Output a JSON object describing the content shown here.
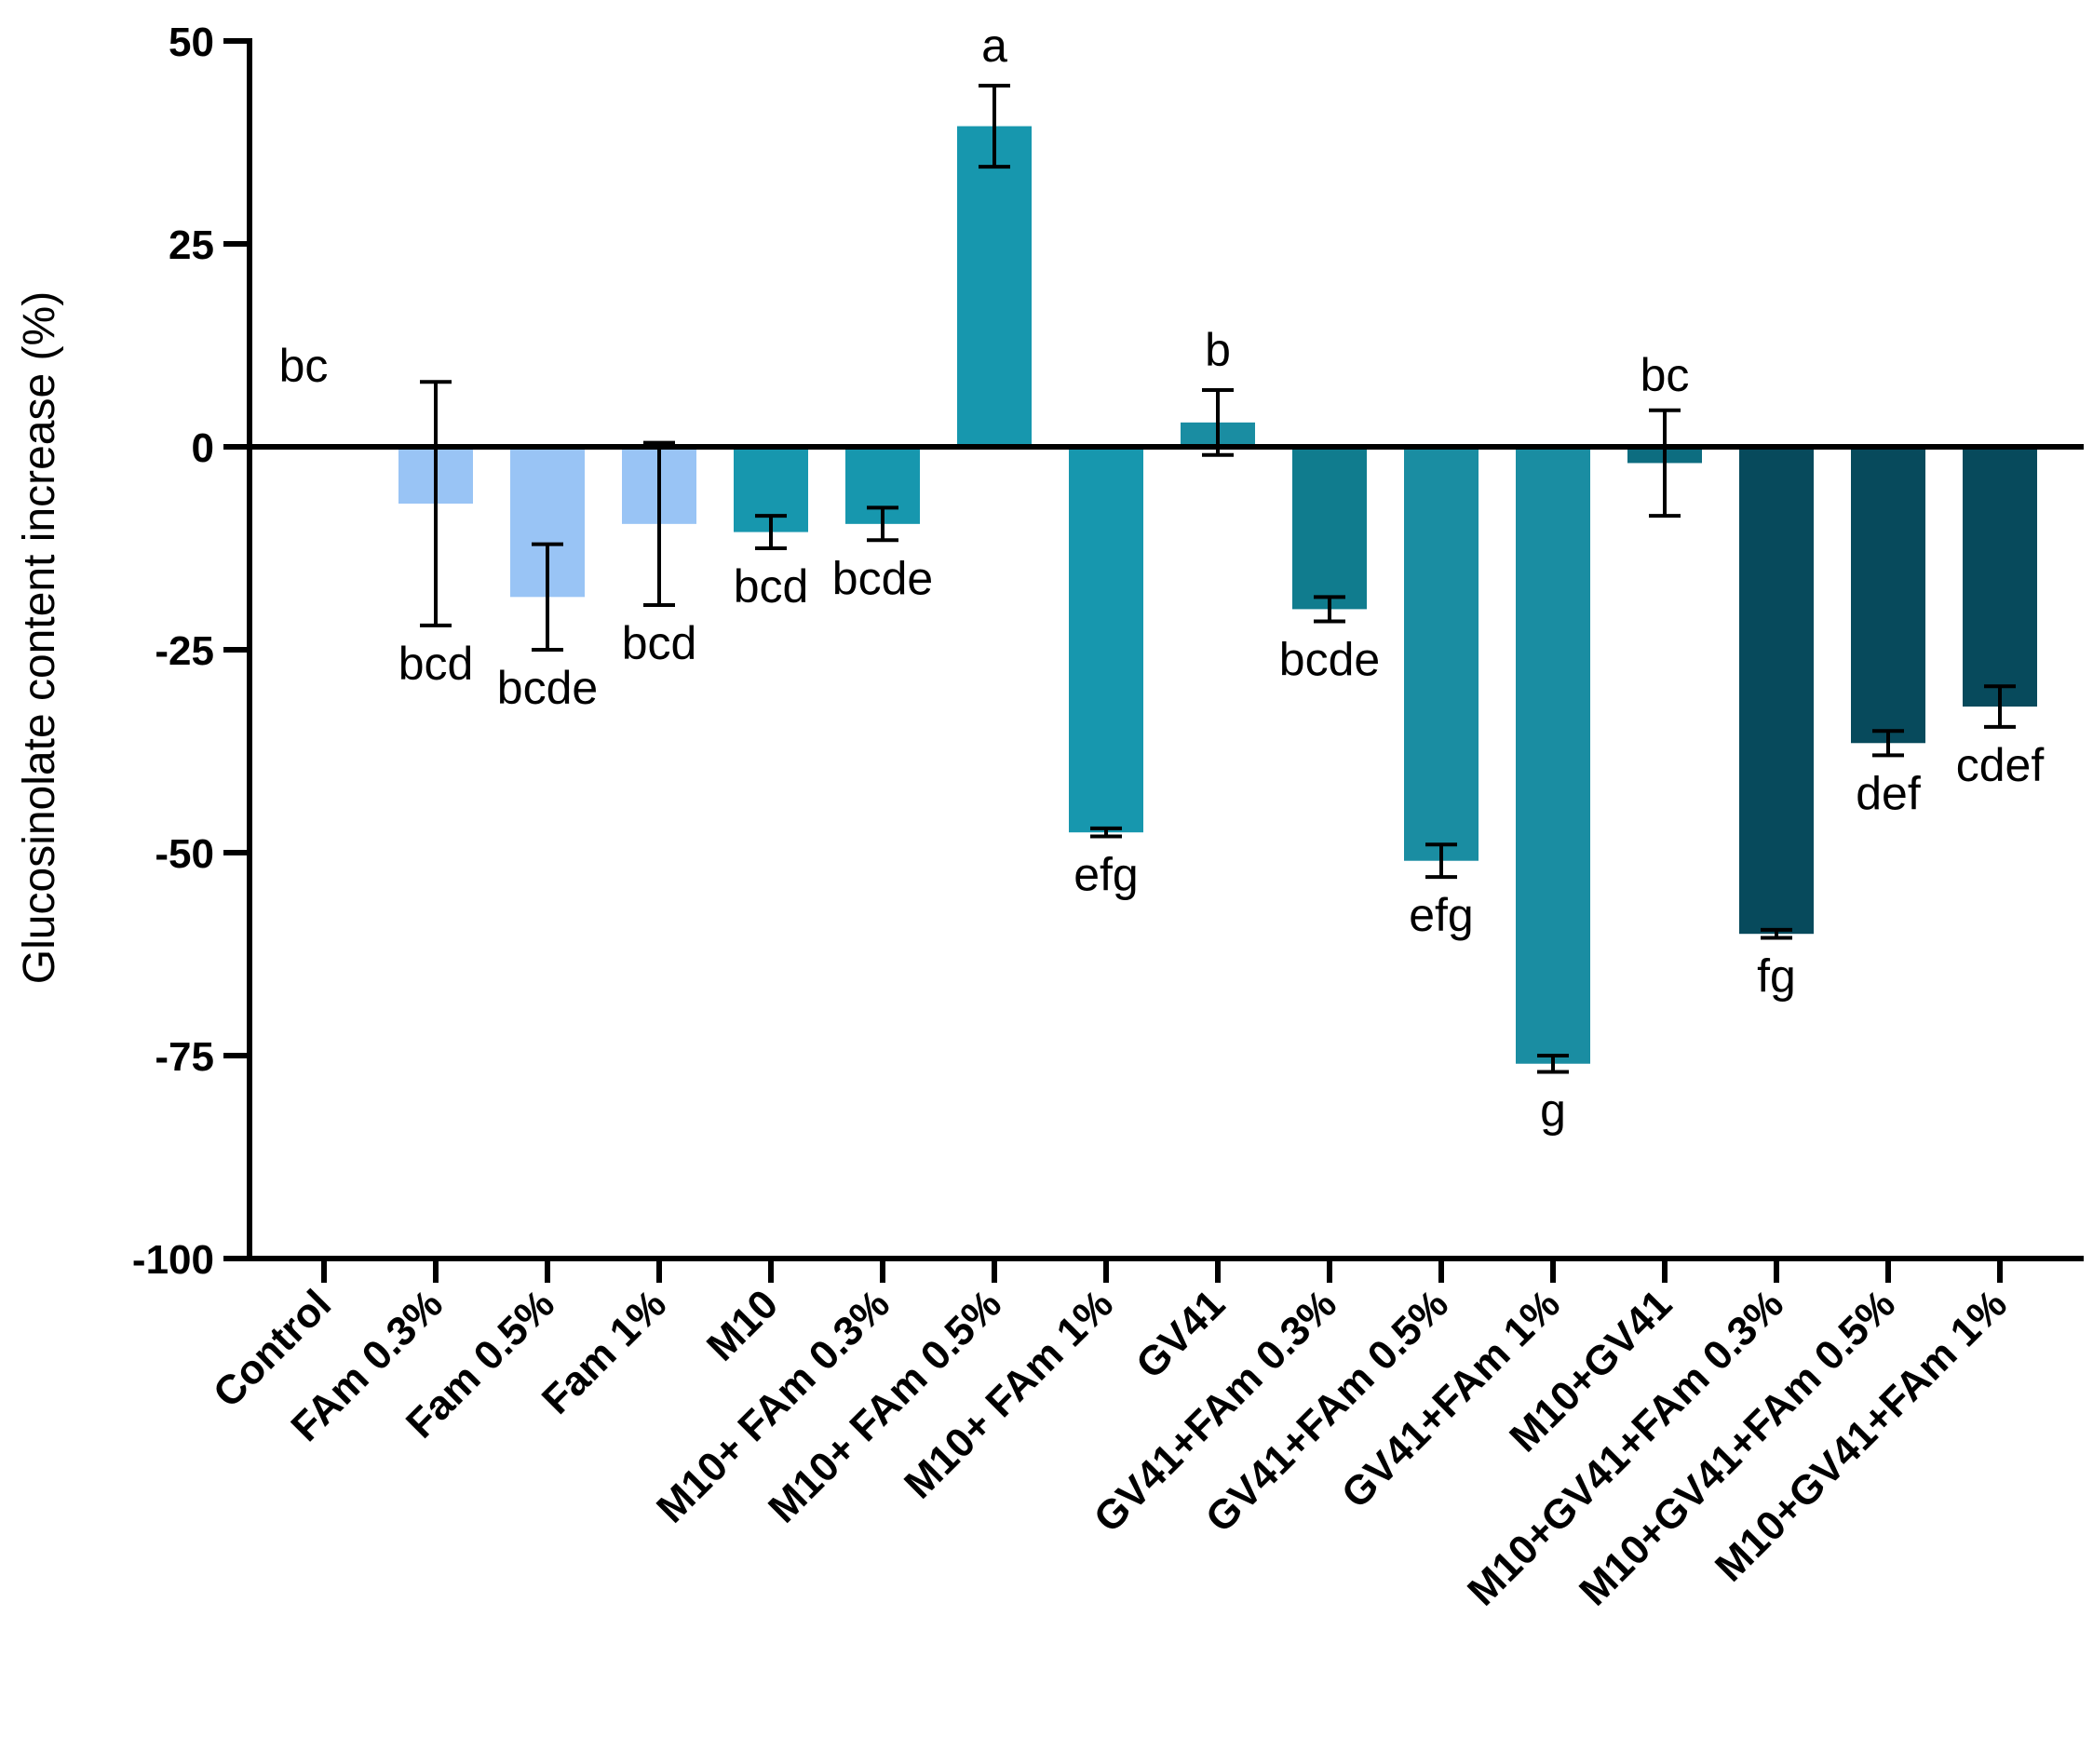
{
  "chart_data": {
    "type": "bar",
    "title": "",
    "xlabel": "",
    "ylabel": "Glucosinolate content increase (%)",
    "ylim": [
      -100,
      50
    ],
    "yticks": [
      50,
      25,
      0,
      -25,
      -50,
      -75,
      -100
    ],
    "yticks_text": [
      "50",
      "25",
      "0",
      "-25",
      "-50",
      "-75",
      "-100"
    ],
    "grid": false,
    "categories": [
      "Control",
      "FAm 0.3%",
      "Fam 0.5%",
      "Fam 1%",
      "M10",
      "M10+ FAm 0.3%",
      "M10+ FAm 0.5%",
      "M10+ FAm 1%",
      "GV41",
      "GV41+FAm 0.3%",
      "GV41+FAm 0.5%",
      "GV41+FAm 1%",
      "M10+GV41",
      "M10+GV41+FAm 0.3%",
      "M10+GV41+FAm 0.5%",
      "M10+GV41+FAm 1%"
    ],
    "values": [
      0,
      -7,
      -18.5,
      -9.5,
      -10.5,
      -9.5,
      39.5,
      -47.5,
      3,
      -20,
      -51,
      -76,
      -2,
      -60,
      -36.5,
      -32
    ],
    "errors": [
      0,
      15,
      6.5,
      10,
      2,
      2,
      5,
      0.5,
      4,
      1.5,
      2,
      1,
      6.5,
      0.5,
      1.5,
      2.5
    ],
    "letters": [
      "bc",
      "bcd",
      "bcde",
      "bcd",
      "bcd",
      "bcde",
      "a",
      "efg",
      "b",
      "bcde",
      "efg",
      "g",
      "bc",
      "fg",
      "def",
      "cdef"
    ],
    "colors": [
      "#ffffff",
      "#99c4f5",
      "#99c4f5",
      "#99c4f5",
      "#1797ae",
      "#1797ae",
      "#1797ae",
      "#1797ae",
      "#1a8da2",
      "#107c8e",
      "#1a8da2",
      "#1a8da2",
      "#0d6d80",
      "#074a5c",
      "#074a5c",
      "#074a5c"
    ]
  }
}
